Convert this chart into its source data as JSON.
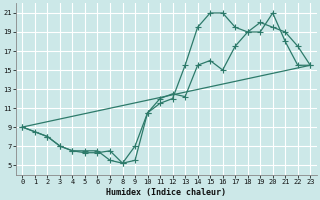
{
  "title": "",
  "xlabel": "Humidex (Indice chaleur)",
  "bg_color": "#cce8e8",
  "grid_color": "#ffffff",
  "line_color": "#2d7a6a",
  "xlim": [
    -0.5,
    23.5
  ],
  "ylim": [
    4,
    22
  ],
  "xticks": [
    0,
    1,
    2,
    3,
    4,
    5,
    6,
    7,
    8,
    9,
    10,
    11,
    12,
    13,
    14,
    15,
    16,
    17,
    18,
    19,
    20,
    21,
    22,
    23
  ],
  "yticks": [
    5,
    7,
    9,
    11,
    13,
    15,
    17,
    19,
    21
  ],
  "line1_x": [
    0,
    1,
    2,
    3,
    4,
    5,
    6,
    7,
    8,
    9,
    10,
    11,
    12,
    13,
    14,
    15,
    16,
    17,
    18,
    19,
    20,
    21,
    22,
    23
  ],
  "line1_y": [
    9,
    8.5,
    8,
    7,
    6.5,
    6.5,
    6.5,
    5.5,
    5.2,
    7,
    10.5,
    11.5,
    12,
    15.5,
    19.5,
    21,
    21,
    19.5,
    19,
    19,
    21,
    18,
    15.5,
    15.5
  ],
  "line2_x": [
    0,
    2,
    3,
    4,
    5,
    6,
    7,
    8,
    9,
    10,
    11,
    12,
    13,
    14,
    15,
    16,
    17,
    18,
    19,
    20,
    21,
    22,
    23
  ],
  "line2_y": [
    9,
    8,
    7,
    6.5,
    6.3,
    6.3,
    6.5,
    5.2,
    5.5,
    10.5,
    12,
    12.5,
    12.2,
    15.5,
    16,
    15,
    17.5,
    19,
    20,
    19.5,
    19,
    17.5,
    15.5
  ],
  "line3_x": [
    0,
    23
  ],
  "line3_y": [
    9,
    15.5
  ]
}
